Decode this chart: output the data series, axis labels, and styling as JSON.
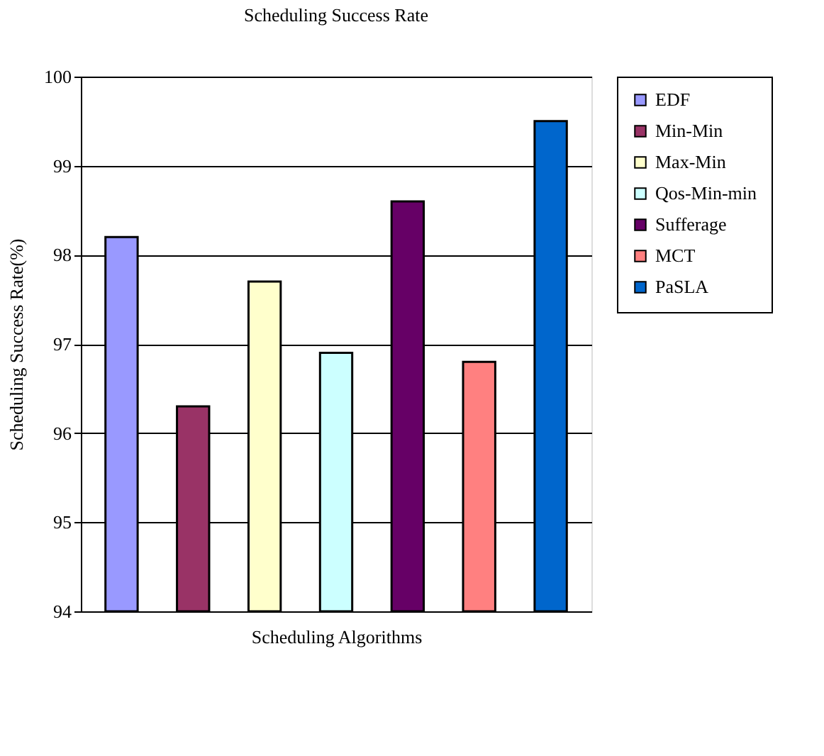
{
  "chart_data": {
    "type": "bar",
    "title": "Scheduling Success Rate",
    "xlabel": "Scheduling Algorithms",
    "ylabel": "Scheduling Success Rate(%)",
    "categories": [
      null
    ],
    "series": [
      {
        "name": "EDF",
        "color": "#9999ff",
        "values": [
          98.2
        ]
      },
      {
        "name": "Min-Min",
        "color": "#993366",
        "values": [
          96.3
        ]
      },
      {
        "name": "Max-Min",
        "color": "#ffffcc",
        "values": [
          97.7
        ]
      },
      {
        "name": "Qos-Min-min",
        "color": "#ccffff",
        "values": [
          96.9
        ]
      },
      {
        "name": "Sufferage",
        "color": "#660066",
        "values": [
          98.6
        ]
      },
      {
        "name": "MCT",
        "color": "#ff8080",
        "values": [
          96.8
        ]
      },
      {
        "name": "PaSLA",
        "color": "#0066cc",
        "values": [
          99.5
        ]
      }
    ],
    "ylim": [
      94,
      100
    ],
    "yticks": [
      94,
      95,
      96,
      97,
      98,
      99,
      100
    ],
    "grid": "y",
    "legend": "right",
    "tick_labels": "y"
  }
}
